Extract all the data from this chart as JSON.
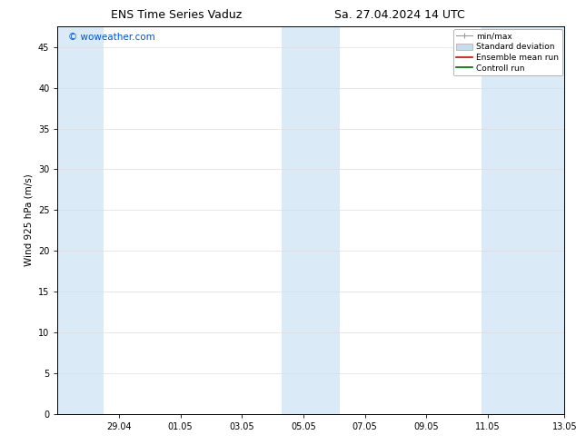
{
  "title_left": "ENS Time Series Vaduz",
  "title_right": "Sa. 27.04.2024 14 UTC",
  "ylabel": "Wind 925 hPa (m/s)",
  "watermark": "© woweather.com",
  "watermark_color": "#0055cc",
  "ylim": [
    0,
    47.5
  ],
  "yticks": [
    0,
    5,
    10,
    15,
    20,
    25,
    30,
    35,
    40,
    45
  ],
  "background_color": "#ffffff",
  "plot_bg_color": "#ffffff",
  "shaded_band_color": "#daeaf7",
  "shaded_band_alpha": 1.0,
  "total_days": 16.5,
  "tick_day_offsets": [
    2,
    4,
    6,
    8,
    10,
    12,
    14,
    16.5
  ],
  "x_tick_labels": [
    "29.04",
    "01.05",
    "03.05",
    "05.05",
    "07.05",
    "09.05",
    "11.05",
    "13.05"
  ],
  "band_day_ranges": [
    [
      0.0,
      1.5
    ],
    [
      7.3,
      9.2
    ],
    [
      13.8,
      16.5
    ]
  ],
  "legend_items": [
    {
      "label": "min/max",
      "color": "#999999",
      "type": "errorbar"
    },
    {
      "label": "Standard deviation",
      "color": "#c8dcea",
      "type": "box"
    },
    {
      "label": "Ensemble mean run",
      "color": "#dd0000",
      "type": "line"
    },
    {
      "label": "Controll run",
      "color": "#006600",
      "type": "line"
    }
  ],
  "font_size_title": 9,
  "font_size_labels": 7.5,
  "font_size_ticks": 7,
  "font_size_legend": 6.5,
  "font_size_watermark": 7.5,
  "grid_color": "#dddddd",
  "spine_color": "#000000",
  "title_font_family": "DejaVu Sans"
}
